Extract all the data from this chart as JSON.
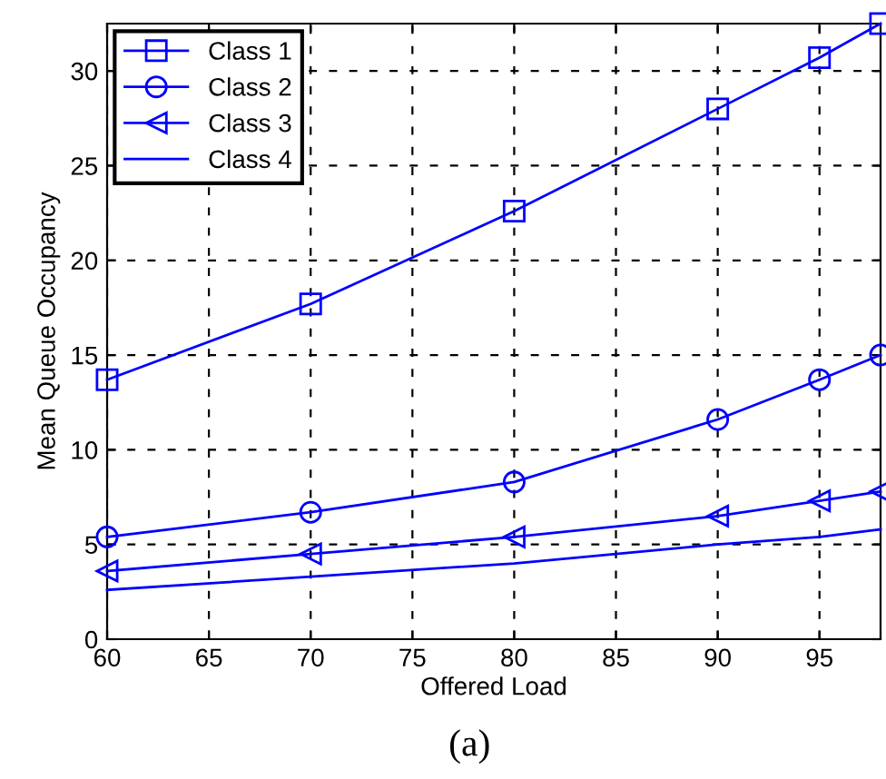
{
  "chart_data": {
    "type": "line",
    "xlabel": "Offered Load",
    "ylabel": "Mean Queue Occupancy",
    "x": [
      60,
      70,
      80,
      90,
      95,
      98
    ],
    "series": [
      {
        "name": "Class 1",
        "color": "#0000ff",
        "marker": "square",
        "values": [
          13.7,
          17.7,
          22.6,
          28.0,
          30.7,
          32.5
        ]
      },
      {
        "name": "Class 2",
        "color": "#0000ff",
        "marker": "circle",
        "values": [
          5.4,
          6.7,
          8.3,
          11.6,
          13.7,
          15.0
        ]
      },
      {
        "name": "Class 3",
        "color": "#0000ff",
        "marker": "triangle",
        "values": [
          3.6,
          4.5,
          5.4,
          6.5,
          7.3,
          7.8
        ]
      },
      {
        "name": "Class 4",
        "color": "#0000ff",
        "marker": "none",
        "values": [
          2.6,
          3.3,
          4.0,
          5.0,
          5.4,
          5.8
        ]
      }
    ],
    "xlim": [
      60,
      98
    ],
    "xticks": [
      60,
      65,
      70,
      75,
      80,
      85,
      90,
      95
    ],
    "ylim": [
      0,
      32.5
    ],
    "yticks": [
      0,
      5,
      10,
      15,
      20,
      25,
      30
    ],
    "grid": true,
    "legend": "top left",
    "line_style": "solid",
    "annotations": [
      "(a)"
    ]
  }
}
